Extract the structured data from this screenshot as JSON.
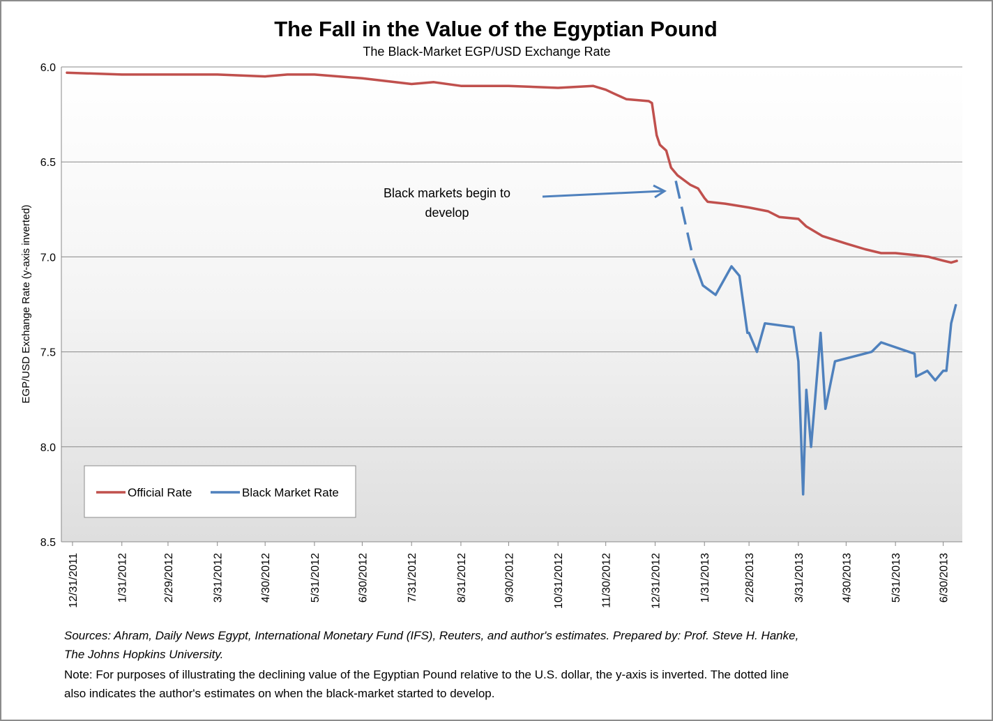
{
  "chart_data": {
    "type": "line",
    "title": "The Fall in the Value of the Egyptian Pound",
    "subtitle": "The Black-Market EGP/USD Exchange Rate",
    "ylabel": "EGP/USD Exchange Rate (y-axis inverted)",
    "xlabel": "",
    "ylim": [
      6.0,
      8.5
    ],
    "y_inverted": true,
    "yticks": [
      "6.0",
      "6.5",
      "7.0",
      "7.5",
      "8.0",
      "8.5"
    ],
    "xticks": [
      "12/31/2011",
      "1/31/2012",
      "2/29/2012",
      "3/31/2012",
      "4/30/2012",
      "5/31/2012",
      "6/30/2012",
      "7/31/2012",
      "8/31/2012",
      "9/30/2012",
      "10/31/2012",
      "11/30/2012",
      "12/31/2012",
      "1/31/2013",
      "2/28/2013",
      "3/31/2013",
      "4/30/2013",
      "5/31/2013",
      "6/30/2013"
    ],
    "xlim": [
      "2011-12-24",
      "2013-07-12"
    ],
    "grid": true,
    "legend_placement": "bottom-left",
    "annotation": {
      "text_line1": "Black markets begin to",
      "text_line2": "develop",
      "points_to": "2013-01-13"
    },
    "series": [
      {
        "name": "Official Rate",
        "color": "#c0504d",
        "points": [
          [
            "2011-12-27",
            6.03
          ],
          [
            "2012-01-31",
            6.04
          ],
          [
            "2012-02-29",
            6.04
          ],
          [
            "2012-03-31",
            6.04
          ],
          [
            "2012-04-30",
            6.05
          ],
          [
            "2012-05-14",
            6.04
          ],
          [
            "2012-05-31",
            6.04
          ],
          [
            "2012-06-30",
            6.06
          ],
          [
            "2012-07-31",
            6.09
          ],
          [
            "2012-08-14",
            6.08
          ],
          [
            "2012-08-31",
            6.1
          ],
          [
            "2012-09-30",
            6.1
          ],
          [
            "2012-10-31",
            6.11
          ],
          [
            "2012-11-22",
            6.1
          ],
          [
            "2012-11-30",
            6.12
          ],
          [
            "2012-12-05",
            6.14
          ],
          [
            "2012-12-13",
            6.17
          ],
          [
            "2012-12-27",
            6.18
          ],
          [
            "2012-12-29",
            6.19
          ],
          [
            "2013-01-01",
            6.36
          ],
          [
            "2013-01-03",
            6.41
          ],
          [
            "2013-01-07",
            6.44
          ],
          [
            "2013-01-10",
            6.53
          ],
          [
            "2013-01-14",
            6.57
          ],
          [
            "2013-01-22",
            6.62
          ],
          [
            "2013-01-27",
            6.64
          ],
          [
            "2013-01-31",
            6.69
          ],
          [
            "2013-02-02",
            6.71
          ],
          [
            "2013-02-13",
            6.72
          ],
          [
            "2013-02-28",
            6.74
          ],
          [
            "2013-03-12",
            6.76
          ],
          [
            "2013-03-19",
            6.79
          ],
          [
            "2013-03-31",
            6.8
          ],
          [
            "2013-04-05",
            6.84
          ],
          [
            "2013-04-15",
            6.89
          ],
          [
            "2013-04-30",
            6.93
          ],
          [
            "2013-05-12",
            6.96
          ],
          [
            "2013-05-22",
            6.98
          ],
          [
            "2013-05-31",
            6.98
          ],
          [
            "2013-06-12",
            6.99
          ],
          [
            "2013-06-21",
            7.0
          ],
          [
            "2013-06-30",
            7.02
          ],
          [
            "2013-07-05",
            7.03
          ],
          [
            "2013-07-09",
            7.02
          ]
        ]
      },
      {
        "name": "Black Market Rate",
        "color": "#4f81bd",
        "estimated_points": [
          [
            "2013-01-13",
            6.6
          ],
          [
            "2013-01-24",
            7.01
          ]
        ],
        "points": [
          [
            "2013-01-24",
            7.01
          ],
          [
            "2013-01-30",
            7.15
          ],
          [
            "2013-02-07",
            7.2
          ],
          [
            "2013-02-17",
            7.05
          ],
          [
            "2013-02-22",
            7.1
          ],
          [
            "2013-02-27",
            7.4
          ],
          [
            "2013-02-28",
            7.4
          ],
          [
            "2013-03-05",
            7.5
          ],
          [
            "2013-03-10",
            7.35
          ],
          [
            "2013-03-28",
            7.37
          ],
          [
            "2013-03-31",
            7.55
          ],
          [
            "2013-04-03",
            8.25
          ],
          [
            "2013-04-05",
            7.7
          ],
          [
            "2013-04-08",
            8.0
          ],
          [
            "2013-04-14",
            7.4
          ],
          [
            "2013-04-17",
            7.8
          ],
          [
            "2013-04-23",
            7.55
          ],
          [
            "2013-05-16",
            7.5
          ],
          [
            "2013-05-22",
            7.45
          ],
          [
            "2013-06-12",
            7.51
          ],
          [
            "2013-06-13",
            7.63
          ],
          [
            "2013-06-20",
            7.6
          ],
          [
            "2013-06-25",
            7.65
          ],
          [
            "2013-06-30",
            7.6
          ],
          [
            "2013-07-02",
            7.6
          ],
          [
            "2013-07-05",
            7.35
          ],
          [
            "2013-07-08",
            7.25
          ]
        ]
      }
    ]
  },
  "footer": {
    "sources_line1": "Sources: Ahram, Daily News Egypt, International Monetary Fund  (IFS), Reuters, and author's estimates. Prepared by: Prof. Steve H. Hanke,",
    "sources_line2": "The Johns Hopkins University.",
    "note_line1": "Note: For purposes of illustrating the declining value of the Egyptian Pound relative to the U.S. dollar, the y-axis is inverted. The dotted line",
    "note_line2": "also indicates the author's estimates on when the black-market started to develop."
  }
}
